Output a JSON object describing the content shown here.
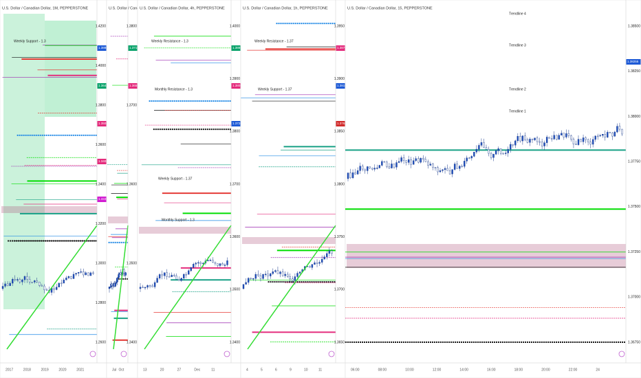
{
  "panes": [
    {
      "title": "U.S. Dollar / Canadian Dollar, 1M, PEPPERSTONE",
      "price_labels": [
        "1.4200",
        "1.4000",
        "1.3800",
        "1.3600",
        "1.3400",
        "1.3200",
        "1.3000",
        "1.2800",
        "1.2600"
      ],
      "annotations": [
        "Weekly Support - 1.3"
      ],
      "time_labels": [
        "2017",
        "2018",
        "2019",
        "2020",
        "2021"
      ],
      "tags": [
        {
          "label": "1.3880",
          "color": "#1e5ad6"
        },
        {
          "label": "1.3642",
          "color": "#0aa36b"
        },
        {
          "label": "1.3500",
          "color": "#e42b7c"
        },
        {
          "label": "1.3400",
          "color": "#e42b7c"
        },
        {
          "label": "1.3220",
          "color": "#d11bd1"
        }
      ]
    },
    {
      "title": "U.S. Dollar / Canadian Dollar",
      "price_labels": [
        "1.3800",
        "1.3700",
        "1.3600",
        "1.3500",
        "1.3400"
      ],
      "annotations": [],
      "time_labels": [
        "Jul",
        "Oct"
      ],
      "tags": [
        {
          "label": "1.3710",
          "color": "#0aa36b"
        },
        {
          "label": "1.3650",
          "color": "#e42b7c"
        }
      ]
    },
    {
      "title": "U.S. Dollar / Canadian Dollar, 4h, PEPPERSTONE",
      "price_labels": [
        "1.4000",
        "1.3900",
        "1.3800",
        "1.3700",
        "1.3600",
        "1.3500",
        "1.3400"
      ],
      "annotations": [
        "Weekly Resistance - 1.3",
        "Monthly Resistance - 1.3",
        "Weekly Support - 1.37",
        "Monthly Support - 1.3"
      ],
      "time_labels": [
        "13",
        "20",
        "27",
        "Dec",
        "11"
      ],
      "tags": [
        {
          "label": "1.3880",
          "color": "#0aa36b"
        },
        {
          "label": "1.3800",
          "color": "#e42b7c"
        },
        {
          "label": "1.3720",
          "color": "#1e5ad6"
        }
      ]
    },
    {
      "title": "U.S. Dollar / Canadian Dollar, 1h, PEPPERSTONE",
      "price_labels": [
        "1.3950",
        "1.3900",
        "1.3850",
        "1.3800",
        "1.3750",
        "1.3700",
        "1.3650"
      ],
      "annotations": [
        "Weekly Resistance - 1.37",
        "Weekly Support - 1.37"
      ],
      "time_labels": [
        "4",
        "5",
        "6",
        "9",
        "10",
        "11"
      ],
      "tags": [
        {
          "label": "1.3870",
          "color": "#e42b7c"
        },
        {
          "label": "1.3810",
          "color": "#1e5ad6"
        },
        {
          "label": "1.3760",
          "color": "#d12b2b"
        }
      ]
    },
    {
      "title": "U.S. Dollar / Canadian Dollar, 15, PEPPERSTONE",
      "price_labels": [
        "1.38500",
        "1.38250",
        "1.38000",
        "1.37750",
        "1.37500",
        "1.37250",
        "1.37000",
        "1.36750"
      ],
      "annotations": [
        "Trendline 4",
        "Trendline 3",
        "Trendline 2",
        "Trendline 1"
      ],
      "time_labels": [
        "06:00",
        "08:00",
        "10:00",
        "12:00",
        "14:00",
        "16:00",
        "18:00",
        "20:00",
        "22:00",
        "24"
      ],
      "tags": [
        {
          "label": "1.38255",
          "color": "#1e5ad6"
        }
      ]
    }
  ]
}
